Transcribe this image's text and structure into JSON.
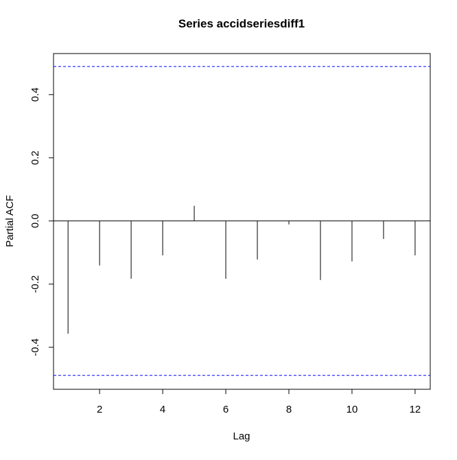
{
  "chart_data": {
    "type": "spike",
    "title": "Series  accidseriesdiff1",
    "x_label": "Lag",
    "y_label": "Partial ACF",
    "x": [
      1,
      2,
      3,
      4,
      5,
      6,
      7,
      8,
      9,
      10,
      11,
      12
    ],
    "values": [
      -0.357,
      -0.141,
      -0.183,
      -0.109,
      0.048,
      -0.183,
      -0.122,
      -0.011,
      -0.187,
      -0.128,
      -0.057,
      -0.109
    ],
    "color": "#000000",
    "xlim": [
      0.54,
      12.48
    ],
    "xticks": [
      2,
      4,
      6,
      8,
      10,
      12
    ],
    "ylim": [
      -0.533,
      0.53
    ],
    "yticks": [
      -0.4,
      -0.2,
      {
        "value": 0,
        "label": "0.0"
      },
      0.2,
      0.4
    ],
    "reference_lines": {
      "values": [
        0.489,
        -0.489
      ],
      "color": "#0000ff"
    }
  }
}
